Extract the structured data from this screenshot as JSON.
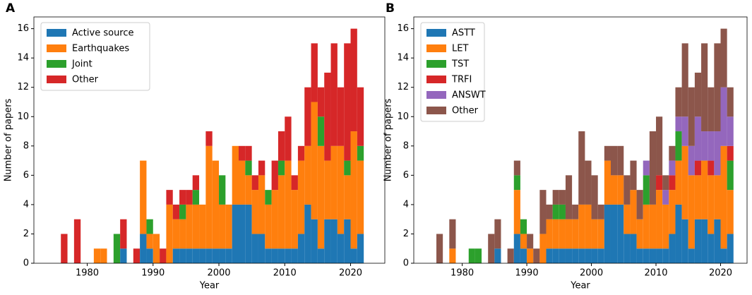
{
  "chart_data": [
    {
      "type": "histogram",
      "panel_label": "A",
      "xlabel": "Year",
      "ylabel": "Number of papers",
      "bins": [
        1976,
        1977,
        1978,
        1979,
        1980,
        1981,
        1982,
        1983,
        1984,
        1985,
        1986,
        1987,
        1988,
        1989,
        1990,
        1991,
        1992,
        1993,
        1994,
        1995,
        1996,
        1997,
        1998,
        1999,
        2000,
        2001,
        2002,
        2003,
        2004,
        2005,
        2006,
        2007,
        2008,
        2009,
        2010,
        2011,
        2012,
        2013,
        2014,
        2015,
        2016,
        2017,
        2018,
        2019,
        2020,
        2021,
        2022
      ],
      "stacked": true,
      "legend": "upper left",
      "xlim": [
        1971.9,
        2025.2
      ],
      "xticks": [
        1980,
        1990,
        2000,
        2010,
        2020
      ],
      "ylim": [
        0,
        16.8
      ],
      "yticks": [
        0,
        2,
        4,
        6,
        8,
        10,
        12,
        14,
        16
      ],
      "series": [
        {
          "name": "Active source",
          "color": "#1f77b4",
          "values": [
            0,
            0,
            0,
            0,
            0,
            0,
            0,
            0,
            0,
            1,
            0,
            0,
            2,
            1,
            0,
            0,
            0,
            1,
            1,
            1,
            1,
            1,
            1,
            1,
            1,
            1,
            4,
            4,
            4,
            2,
            2,
            1,
            1,
            1,
            1,
            1,
            2,
            4,
            3,
            1,
            3,
            3,
            2,
            3,
            1,
            2
          ]
        },
        {
          "name": "Earthquakes",
          "color": "#ff7f0e",
          "values": [
            0,
            0,
            0,
            0,
            0,
            1,
            1,
            0,
            0,
            0,
            0,
            0,
            5,
            1,
            2,
            0,
            4,
            2,
            2,
            3,
            3,
            3,
            7,
            6,
            3,
            3,
            4,
            3,
            2,
            3,
            4,
            3,
            4,
            5,
            6,
            4,
            5,
            4,
            8,
            7,
            4,
            5,
            6,
            3,
            8,
            5
          ]
        },
        {
          "name": "Joint",
          "color": "#2ca02c",
          "values": [
            0,
            0,
            0,
            0,
            0,
            0,
            0,
            0,
            2,
            0,
            0,
            0,
            0,
            1,
            0,
            0,
            0,
            0,
            1,
            0,
            1,
            0,
            0,
            0,
            2,
            0,
            0,
            0,
            1,
            0,
            0,
            1,
            0,
            1,
            0,
            0,
            0,
            0,
            0,
            2,
            0,
            0,
            0,
            1,
            0,
            1
          ]
        },
        {
          "name": "Other",
          "color": "#d62728",
          "values": [
            2,
            0,
            3,
            0,
            0,
            0,
            0,
            0,
            0,
            2,
            0,
            1,
            0,
            0,
            0,
            1,
            1,
            1,
            1,
            1,
            1,
            0,
            1,
            0,
            0,
            0,
            0,
            1,
            1,
            1,
            1,
            0,
            2,
            2,
            3,
            1,
            1,
            4,
            4,
            2,
            6,
            7,
            4,
            8,
            7,
            4
          ]
        }
      ]
    },
    {
      "type": "histogram",
      "panel_label": "B",
      "xlabel": "Year",
      "ylabel": "Number of papers",
      "bins": [
        1976,
        1977,
        1978,
        1979,
        1980,
        1981,
        1982,
        1983,
        1984,
        1985,
        1986,
        1987,
        1988,
        1989,
        1990,
        1991,
        1992,
        1993,
        1994,
        1995,
        1996,
        1997,
        1998,
        1999,
        2000,
        2001,
        2002,
        2003,
        2004,
        2005,
        2006,
        2007,
        2008,
        2009,
        2010,
        2011,
        2012,
        2013,
        2014,
        2015,
        2016,
        2017,
        2018,
        2019,
        2020,
        2021,
        2022
      ],
      "stacked": true,
      "legend": "upper left",
      "xlim": [
        1972.5,
        2024.1
      ],
      "xticks": [
        1980,
        1990,
        2000,
        2010,
        2020
      ],
      "ylim": [
        0,
        16.8
      ],
      "yticks": [
        0,
        2,
        4,
        6,
        8,
        10,
        12,
        14,
        16
      ],
      "series": [
        {
          "name": "ASTT",
          "color": "#1f77b4",
          "values": [
            0,
            0,
            0,
            0,
            0,
            0,
            0,
            0,
            0,
            1,
            0,
            0,
            2,
            1,
            0,
            0,
            0,
            1,
            1,
            1,
            1,
            1,
            1,
            1,
            1,
            1,
            4,
            4,
            4,
            2,
            2,
            1,
            1,
            1,
            1,
            1,
            2,
            4,
            3,
            1,
            3,
            3,
            2,
            3,
            1,
            2
          ]
        },
        {
          "name": "LET",
          "color": "#ff7f0e",
          "values": [
            0,
            0,
            1,
            0,
            0,
            0,
            0,
            0,
            0,
            0,
            0,
            0,
            3,
            1,
            1,
            0,
            2,
            2,
            2,
            2,
            2,
            2,
            3,
            3,
            2,
            2,
            3,
            2,
            2,
            2,
            3,
            2,
            3,
            3,
            4,
            3,
            3,
            3,
            5,
            5,
            3,
            4,
            4,
            3,
            7,
            3
          ]
        },
        {
          "name": "TST",
          "color": "#2ca02c",
          "values": [
            0,
            0,
            0,
            0,
            0,
            1,
            1,
            0,
            0,
            0,
            0,
            0,
            1,
            1,
            0,
            0,
            0,
            0,
            1,
            1,
            0,
            0,
            0,
            0,
            0,
            0,
            0,
            0,
            0,
            0,
            0,
            0,
            2,
            0,
            0,
            0,
            0,
            2,
            0,
            0,
            0,
            0,
            0,
            0,
            0,
            2
          ]
        },
        {
          "name": "TRFI",
          "color": "#d62728",
          "values": [
            0,
            0,
            0,
            0,
            0,
            0,
            0,
            0,
            0,
            0,
            0,
            0,
            0,
            0,
            0,
            0,
            0,
            0,
            0,
            0,
            0,
            0,
            0,
            0,
            0,
            0,
            0,
            0,
            0,
            0,
            0,
            0,
            0,
            0,
            1,
            0,
            1,
            0,
            0,
            0,
            1,
            0,
            1,
            0,
            0,
            1
          ]
        },
        {
          "name": "ANSWT",
          "color": "#9467bd",
          "values": [
            0,
            0,
            0,
            0,
            0,
            0,
            0,
            0,
            0,
            0,
            0,
            0,
            0,
            0,
            0,
            0,
            0,
            0,
            0,
            0,
            0,
            0,
            0,
            0,
            0,
            0,
            0,
            0,
            0,
            0,
            0,
            0,
            1,
            0,
            0,
            1,
            1,
            1,
            2,
            2,
            3,
            2,
            2,
            3,
            4,
            2
          ]
        },
        {
          "name": "Other",
          "color": "#8c564b",
          "values": [
            2,
            0,
            2,
            0,
            0,
            0,
            0,
            0,
            2,
            2,
            0,
            1,
            1,
            0,
            1,
            1,
            3,
            1,
            1,
            1,
            3,
            1,
            5,
            3,
            3,
            1,
            1,
            2,
            2,
            2,
            2,
            2,
            0,
            5,
            4,
            1,
            1,
            2,
            5,
            4,
            3,
            6,
            3,
            6,
            4,
            2
          ]
        }
      ]
    }
  ]
}
